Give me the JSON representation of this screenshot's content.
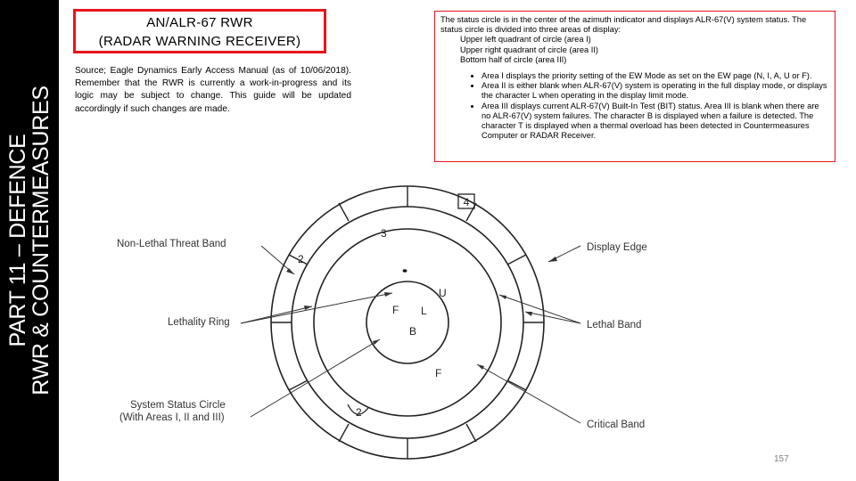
{
  "sidebar": {
    "line1": "PART 11 – DEFENCE",
    "line2": "RWR & COUNTERMEASURES"
  },
  "title": {
    "line1": "AN/ALR-67 RWR",
    "line2": "(RADAR WARNING RECEIVER)"
  },
  "source_text": "Source; Eagle Dynamics Early Access Manual (as of 10/06/2018). Remember that the RWR is currently a work-in-progress and its logic may be subject to change. This guide will be updated accordingly if such changes are made.",
  "status": {
    "intro": "The status circle is in the center of the azimuth indicator and displays ALR-67(V) system status. The status circle is divided into three areas of display:",
    "areas": [
      "Upper left quadrant of circle (area I)",
      "Upper right quadrant of circle (area II)",
      "Bottom half of circle (area III)"
    ],
    "bullets": [
      "Area I displays the priority setting of the EW Mode as set on the EW page (N, I, A, U or F).",
      "Area II is either blank when ALR-67(V) system is operating in the full display mode, or displays the character L when operating in the display limit mode.",
      "Area III displays current ALR-67(V) Built-In Test (BIT) status. Area III is blank when there are no ALR-67(V) system failures. The character B is displayed when a failure is detected. The character T is displayed when a thermal overload has been detected in Countermeasures Computer or RADAR Receiver."
    ]
  },
  "diagram": {
    "labels": {
      "non_lethal_threat_band": "Non-Lethal Threat Band",
      "lethality_ring": "Lethality Ring",
      "system_status_circle_line1": "System Status Circle",
      "system_status_circle_line2": "(With Areas I, II and III)",
      "display_edge": "Display Edge",
      "lethal_band": "Lethal Band",
      "critical_band": "Critical Band"
    },
    "symbols": {
      "boxed_4": "4",
      "outer_2": "2",
      "mid_3": "3",
      "u": "U",
      "f_inner": "F",
      "l_inner": "L",
      "b_inner": "B",
      "f_lower": "F",
      "bottom_2": "2"
    }
  },
  "page_number": "157"
}
